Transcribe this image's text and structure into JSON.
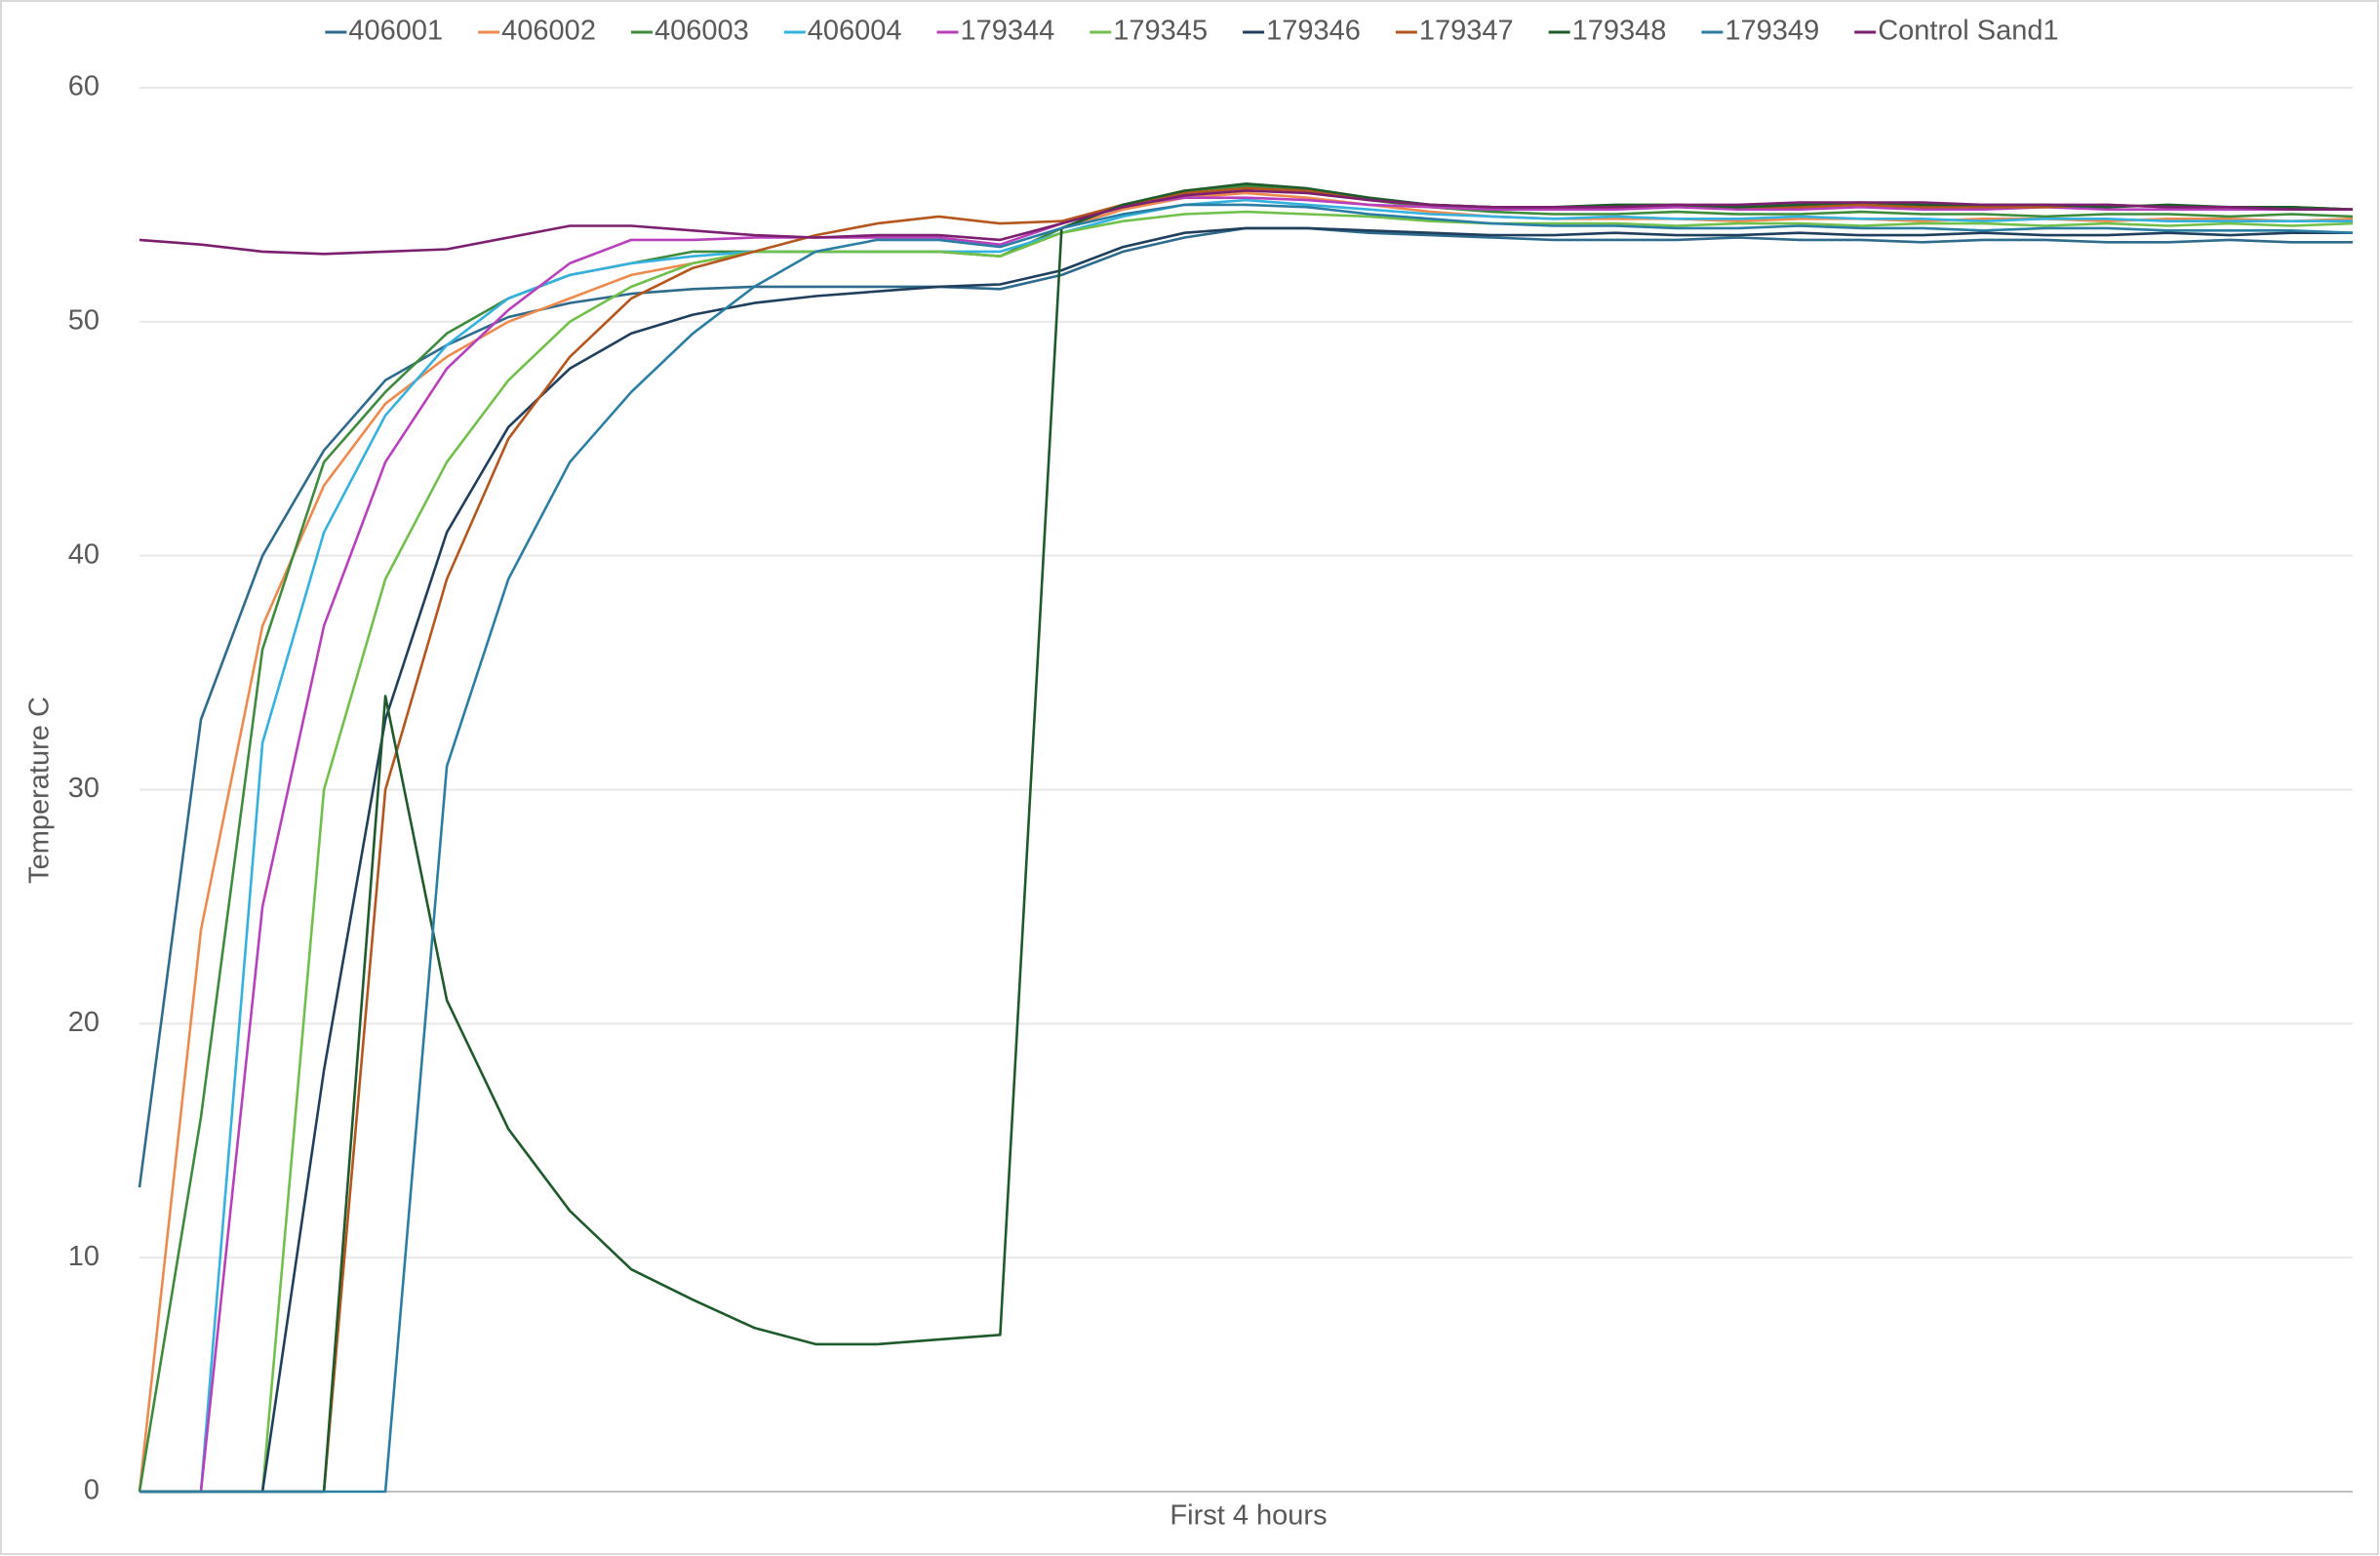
{
  "chart_data": {
    "type": "line",
    "x_label": "First 4 hours",
    "y_label": "Temperature C",
    "ylim": [
      0,
      60
    ],
    "yticks": [
      0,
      10,
      20,
      30,
      40,
      50,
      60
    ],
    "grid": true,
    "legend": "top",
    "series": [
      {
        "name": "406001",
        "color": "#2e6b8c",
        "values": [
          13,
          33,
          40,
          44.5,
          47.5,
          49,
          50.2,
          50.8,
          51.2,
          51.4,
          51.5,
          51.5,
          51.5,
          51.5,
          51.4,
          52,
          53,
          53.6,
          54,
          54,
          53.8,
          53.7,
          53.6,
          53.5,
          53.5,
          53.5,
          53.6,
          53.5,
          53.5,
          53.4,
          53.5,
          53.5,
          53.4,
          53.4,
          53.5,
          53.4,
          53.4
        ]
      },
      {
        "name": "406002",
        "color": "#ee8a4e",
        "values": [
          0,
          24,
          37,
          43,
          46.5,
          48.5,
          50,
          51,
          52,
          52.5,
          53,
          53,
          53,
          53,
          52.8,
          54,
          54.8,
          55.3,
          55.5,
          55.3,
          55,
          54.7,
          54.5,
          54.4,
          54.4,
          54.4,
          54.3,
          54.4,
          54.4,
          54.3,
          54.4,
          54.4,
          54.3,
          54.4,
          54.4,
          54.3,
          54.4
        ]
      },
      {
        "name": "406003",
        "color": "#3e8b3e",
        "values": [
          0,
          16,
          36,
          44,
          47,
          49.5,
          51,
          52,
          52.5,
          53,
          53,
          53,
          53,
          53,
          52.8,
          54,
          55,
          55.6,
          55.8,
          55.6,
          55.2,
          54.9,
          54.7,
          54.6,
          54.6,
          54.7,
          54.6,
          54.6,
          54.7,
          54.6,
          54.6,
          54.5,
          54.6,
          54.6,
          54.5,
          54.6,
          54.5
        ]
      },
      {
        "name": "406004",
        "color": "#35b1e0",
        "values": [
          0,
          0,
          32,
          41,
          46,
          49,
          51,
          52,
          52.5,
          52.8,
          53,
          53,
          53,
          53,
          53,
          53.8,
          54.5,
          55,
          55.2,
          55,
          54.8,
          54.6,
          54.5,
          54.4,
          54.5,
          54.4,
          54.4,
          54.5,
          54.4,
          54.4,
          54.3,
          54.4,
          54.4,
          54.3,
          54.3,
          54.3,
          54.3
        ]
      },
      {
        "name": "179344",
        "color": "#b940bd",
        "values": [
          0,
          0,
          25,
          37,
          44,
          48,
          50.5,
          52.5,
          53.5,
          53.5,
          53.6,
          53.6,
          53.6,
          53.6,
          53.3,
          54.2,
          55,
          55.3,
          55.3,
          55.2,
          55,
          54.9,
          54.8,
          54.8,
          54.8,
          54.9,
          54.8,
          54.8,
          54.9,
          54.8,
          54.8,
          54.9,
          54.8,
          54.8,
          54.8,
          54.8,
          54.8
        ]
      },
      {
        "name": "179345",
        "color": "#72c04c",
        "values": [
          0,
          0,
          0,
          30,
          39,
          44,
          47.5,
          50,
          51.5,
          52.5,
          53,
          53,
          53,
          53,
          52.8,
          53.8,
          54.3,
          54.6,
          54.7,
          54.6,
          54.5,
          54.3,
          54.2,
          54.2,
          54.2,
          54.1,
          54.2,
          54.2,
          54.1,
          54.2,
          54.2,
          54.1,
          54.2,
          54.1,
          54.2,
          54.1,
          54.2
        ]
      },
      {
        "name": "179346",
        "color": "#1f3f5c",
        "values": [
          0,
          0,
          0,
          18,
          33,
          41,
          45.5,
          48,
          49.5,
          50.3,
          50.8,
          51.1,
          51.3,
          51.5,
          51.6,
          52.2,
          53.2,
          53.8,
          54,
          54,
          53.9,
          53.8,
          53.7,
          53.7,
          53.8,
          53.7,
          53.7,
          53.8,
          53.7,
          53.7,
          53.8,
          53.7,
          53.7,
          53.8,
          53.7,
          53.8,
          53.8
        ]
      },
      {
        "name": "179347",
        "color": "#b5561e",
        "values": [
          0,
          0,
          0,
          0,
          30,
          39,
          45,
          48.5,
          51,
          52.3,
          53,
          53.7,
          54.2,
          54.5,
          54.2,
          54.3,
          55,
          55.5,
          55.7,
          55.6,
          55.2,
          55,
          54.9,
          54.9,
          54.9,
          55,
          54.9,
          54.9,
          55,
          54.9,
          54.9,
          54.9,
          55,
          54.9,
          54.9,
          54.9,
          54.8
        ]
      },
      {
        "name": "179348",
        "color": "#1f5a2b",
        "values": [
          0,
          0,
          0,
          0,
          34,
          21,
          15.5,
          12,
          9.5,
          8.2,
          7,
          6.3,
          6.3,
          6.5,
          6.7,
          54,
          55,
          55.6,
          55.9,
          55.7,
          55.3,
          55,
          54.9,
          54.9,
          55,
          55,
          54.9,
          55,
          55.1,
          55,
          55,
          55,
          54.9,
          55,
          54.9,
          54.9,
          54.8
        ]
      },
      {
        "name": "179349",
        "color": "#2b7ea3",
        "values": [
          0,
          0,
          0,
          0,
          0,
          31,
          39,
          44,
          47,
          49.5,
          51.5,
          53,
          53.5,
          53.5,
          53.2,
          54,
          54.6,
          55,
          55,
          54.9,
          54.6,
          54.4,
          54.2,
          54.1,
          54.1,
          54,
          54,
          54.1,
          54,
          54,
          53.9,
          54,
          54,
          53.9,
          53.9,
          53.9,
          53.8
        ]
      },
      {
        "name": "Control Sand1",
        "color": "#7b1f6e",
        "values": [
          53.5,
          53.3,
          53,
          52.9,
          53,
          53.1,
          53.6,
          54.1,
          54.1,
          53.9,
          53.7,
          53.6,
          53.7,
          53.7,
          53.5,
          54.2,
          54.9,
          55.4,
          55.6,
          55.5,
          55.2,
          55,
          54.9,
          54.9,
          54.9,
          55,
          55,
          55.1,
          55.1,
          55.1,
          55,
          55,
          55,
          54.9,
          54.9,
          54.8,
          54.8
        ]
      }
    ]
  }
}
